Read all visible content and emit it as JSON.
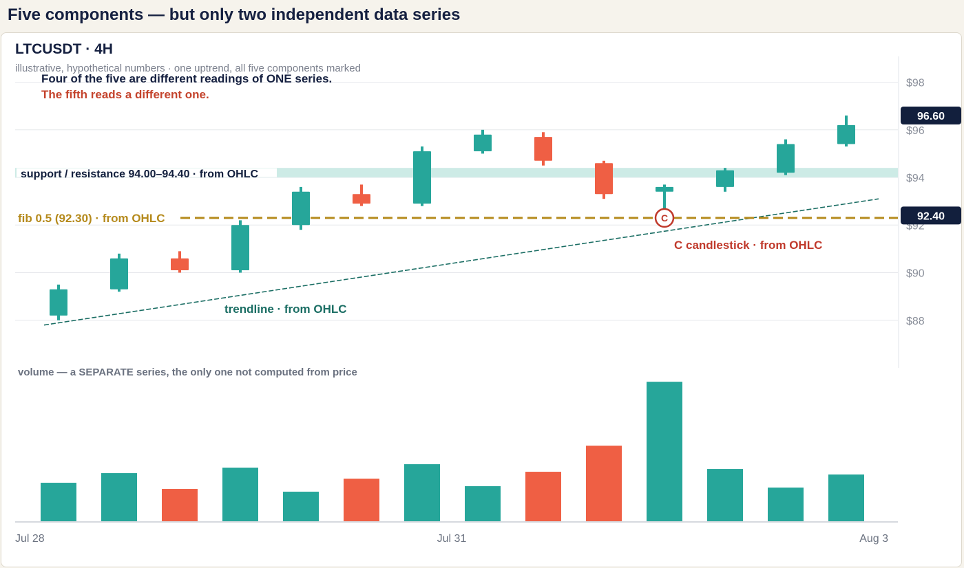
{
  "page": {
    "title": "Five components — but only two independent data series"
  },
  "header": {
    "title": "LTCUSDT · 4H",
    "subtitle": "illustrative, hypothetical numbers · one uptrend, all five components marked",
    "note_main": "Four of the five are different readings of ONE series.",
    "note_alt": "The fifth reads a different one."
  },
  "colors": {
    "up": "#26a69a",
    "down": "#ef5f44",
    "fib": "#b58a1c",
    "trendline": "#1b6e64",
    "zone": "#cdebe6",
    "badge": "#121f3d",
    "marker": "#c0392b"
  },
  "chart_data": {
    "type": "candlestick",
    "price_axis": {
      "ylim": [
        86.0,
        99.2
      ],
      "ticks": [
        88,
        90,
        92,
        94,
        96,
        98
      ],
      "tick_labels": [
        "$88",
        "$90",
        "$92",
        "$94",
        "$96",
        "$98"
      ],
      "grid": true,
      "position": "right"
    },
    "x_axis": {
      "tick_labels": [
        "Jul 28",
        "Jul 31",
        "Aug 3"
      ]
    },
    "candles": [
      {
        "open": 88.2,
        "high": 89.5,
        "low": 88.0,
        "close": 89.3
      },
      {
        "open": 89.3,
        "high": 90.8,
        "low": 89.2,
        "close": 90.6
      },
      {
        "open": 90.6,
        "high": 90.9,
        "low": 90.0,
        "close": 90.1
      },
      {
        "open": 90.1,
        "high": 92.2,
        "low": 90.0,
        "close": 92.0
      },
      {
        "open": 92.0,
        "high": 93.6,
        "low": 91.8,
        "close": 93.4
      },
      {
        "open": 93.3,
        "high": 93.7,
        "low": 92.8,
        "close": 92.9
      },
      {
        "open": 92.9,
        "high": 95.3,
        "low": 92.8,
        "close": 95.1
      },
      {
        "open": 95.1,
        "high": 96.0,
        "low": 95.0,
        "close": 95.8
      },
      {
        "open": 95.7,
        "high": 95.9,
        "low": 94.5,
        "close": 94.7
      },
      {
        "open": 94.6,
        "high": 94.7,
        "low": 93.1,
        "close": 93.3
      },
      {
        "open": 93.4,
        "high": 93.7,
        "low": 92.3,
        "close": 93.6
      },
      {
        "open": 93.6,
        "high": 94.4,
        "low": 93.4,
        "close": 94.3
      },
      {
        "open": 94.2,
        "high": 95.6,
        "low": 94.1,
        "close": 95.4
      },
      {
        "open": 95.4,
        "high": 96.6,
        "low": 95.3,
        "close": 96.2
      }
    ],
    "volume": {
      "label": "volume — a SEPARATE series, the only one not computed from price",
      "values": [
        56,
        70,
        47,
        78,
        43,
        62,
        83,
        51,
        72,
        110,
        203,
        76,
        49,
        68
      ]
    },
    "support_resistance": {
      "low": 94.0,
      "high": 94.4,
      "label": "support / resistance 94.00–94.40 · from OHLC"
    },
    "fib": {
      "value": 92.3,
      "label": "fib 0.5 (92.30) · from OHLC"
    },
    "trendline": {
      "from_value": 87.8,
      "to_value": 93.1,
      "label": "trendline · from OHLC"
    },
    "candlestick_marker": {
      "index": 10,
      "value": 92.3,
      "letter": "C",
      "label": "C  candlestick · from OHLC"
    },
    "price_badges": [
      {
        "value": 96.6,
        "text": "96.60"
      },
      {
        "value": 92.4,
        "text": "92.40"
      }
    ]
  }
}
